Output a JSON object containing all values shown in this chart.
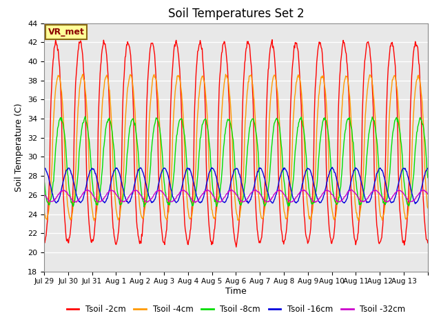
{
  "title": "Soil Temperatures Set 2",
  "xlabel": "Time",
  "ylabel": "Soil Temperature (C)",
  "ylim": [
    18,
    44
  ],
  "yticks": [
    18,
    20,
    22,
    24,
    26,
    28,
    30,
    32,
    34,
    36,
    38,
    40,
    42,
    44
  ],
  "axes_facecolor": "#e8e8e8",
  "grid_color": "#ffffff",
  "legend_labels": [
    "Tsoil -2cm",
    "Tsoil -4cm",
    "Tsoil -8cm",
    "Tsoil -16cm",
    "Tsoil -32cm"
  ],
  "line_colors": [
    "#ff0000",
    "#ff9900",
    "#00dd00",
    "#0000dd",
    "#cc00cc"
  ],
  "annotation_text": "VR_met",
  "title_fontsize": 12,
  "xtick_labels": [
    "Jul 29",
    "Jul 30",
    "Jul 31",
    "Aug 1",
    "Aug 2",
    "Aug 3",
    "Aug 4",
    "Aug 5",
    "Aug 6",
    "Aug 7",
    "Aug 8",
    "Aug 9",
    "Aug 10",
    "Aug 11",
    "Aug 12",
    "Aug 13"
  ],
  "n_days": 16,
  "pts_per_day": 48,
  "mean2": 31.5,
  "amp2": 10.5,
  "phase2": -1.57,
  "mean4": 31.0,
  "amp4": 7.5,
  "phase4": -2.2,
  "mean8": 29.5,
  "amp8": 4.5,
  "phase8": -2.8,
  "mean16": 27.0,
  "amp16": 1.8,
  "phase16": 1.5,
  "mean32": 25.9,
  "amp32": 0.6,
  "phase32": 2.8
}
